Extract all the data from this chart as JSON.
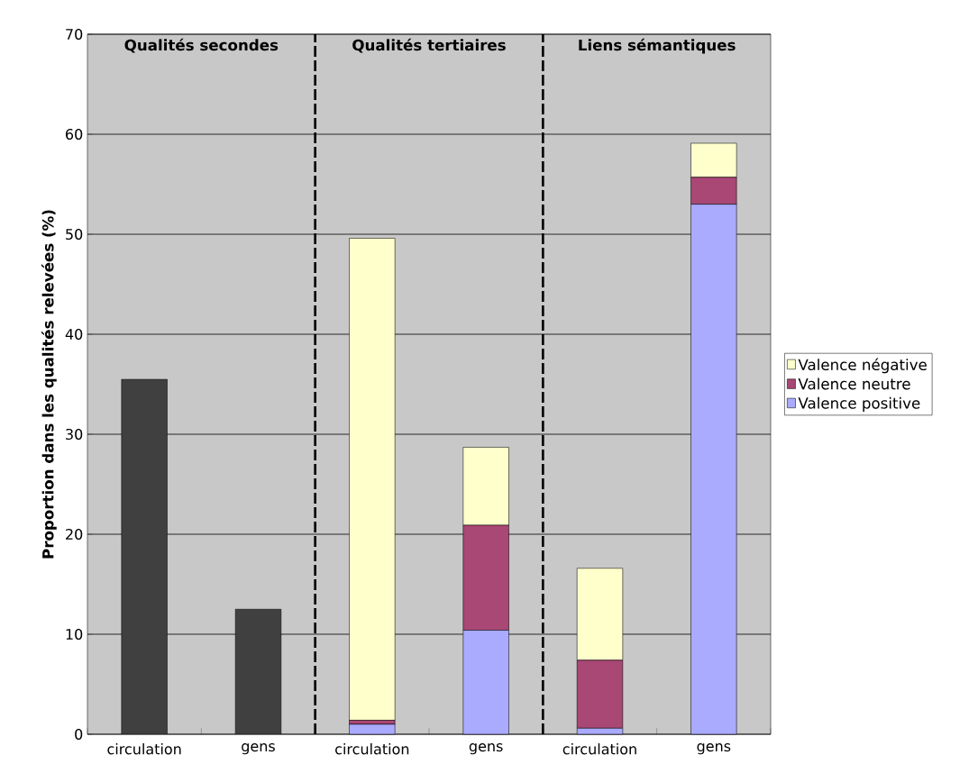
{
  "chart_data": {
    "type": "bar",
    "stacked": true,
    "ylabel": "Proportion dans les qualités relevées (%)",
    "categories": [
      "circulation",
      "gens",
      "circulation",
      "gens",
      "circulation",
      "gens"
    ],
    "series": [
      {
        "color": "#404040",
        "values": [
          35.5,
          12.5,
          null,
          null,
          null,
          null
        ]
      },
      {
        "name": "Valence positive",
        "color": "#aaaaff",
        "values": [
          null,
          null,
          1.0,
          10.4,
          0.6,
          53.0
        ]
      },
      {
        "name": "Valence neutre",
        "color": "#a94775",
        "values": [
          null,
          null,
          0.4,
          10.5,
          6.8,
          2.7
        ]
      },
      {
        "name": "Valence négative",
        "color": "#ffffcc",
        "values": [
          null,
          null,
          48.2,
          7.8,
          9.2,
          3.4
        ]
      }
    ],
    "ylim": [
      0,
      70
    ],
    "yticks": [
      0,
      10,
      20,
      30,
      40,
      50,
      60,
      70
    ],
    "grid": "y",
    "legend": "right",
    "annotations": [
      "Qualités secondes",
      "Qualités tertiaires",
      "Liens sémantiques"
    ]
  }
}
